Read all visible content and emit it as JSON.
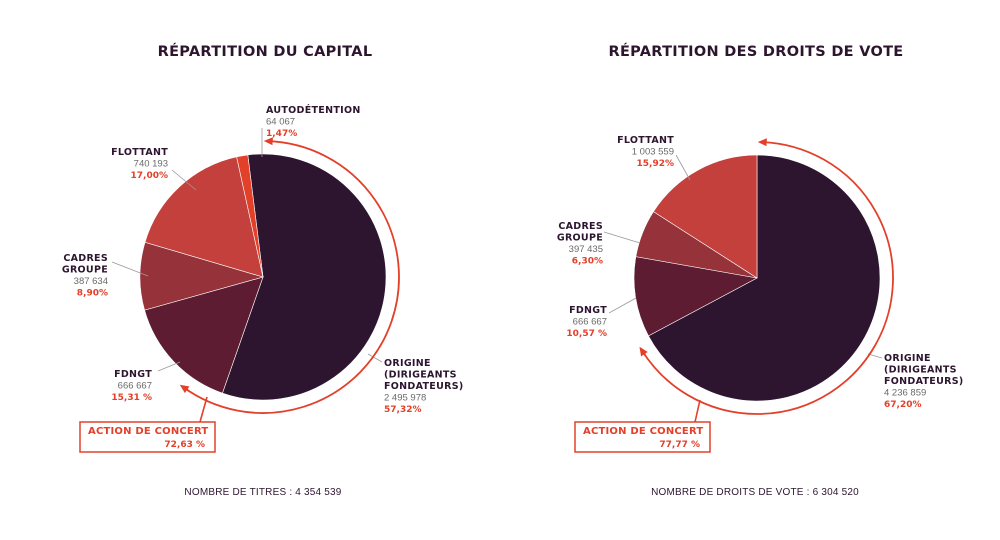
{
  "colors": {
    "origine": "#2d1530",
    "fdngt": "#5e1c32",
    "cadres": "#96333a",
    "flottant": "#c4403c",
    "autodetention": "#e3402a",
    "accent": "#e3402a",
    "text": "#2d1530"
  },
  "chart_data": [
    {
      "type": "pie",
      "title": "RÉPARTITION DU CAPITAL",
      "slices": [
        {
          "key": "origine",
          "name": [
            "ORIGINE",
            "(DIRIGEANTS",
            "FONDATEURS)"
          ],
          "count": "2 495 978",
          "pct_label": "57,32%",
          "value": 57.32
        },
        {
          "key": "fdngt",
          "name": [
            "FDNGT"
          ],
          "count": "666 667",
          "pct_label": "15,31 %",
          "value": 15.31
        },
        {
          "key": "cadres",
          "name": [
            "CADRES",
            "GROUPE"
          ],
          "count": "387 634",
          "pct_label": "8,90%",
          "value": 8.9
        },
        {
          "key": "flottant",
          "name": [
            "FLOTTANT"
          ],
          "count": "740 193",
          "pct_label": "17,00%",
          "value": 17.0
        },
        {
          "key": "autodetention",
          "name": [
            "AUTODÉTENTION"
          ],
          "count": "64 067",
          "pct_label": "1,47%",
          "value": 1.47
        }
      ],
      "concert": {
        "label": "ACTION DE CONCERT",
        "pct_label": "72,63 %",
        "value": 72.63
      },
      "footer": "NOMBRE DE TITRES : 4 354 539"
    },
    {
      "type": "pie",
      "title": "RÉPARTITION DES DROITS DE VOTE",
      "slices": [
        {
          "key": "origine",
          "name": [
            "ORIGINE",
            "(DIRIGEANTS",
            "FONDATEURS)"
          ],
          "count": "4 236 859",
          "pct_label": "67,20%",
          "value": 67.2
        },
        {
          "key": "fdngt",
          "name": [
            "FDNGT"
          ],
          "count": "666 667",
          "pct_label": "10,57 %",
          "value": 10.57
        },
        {
          "key": "cadres",
          "name": [
            "CADRES",
            "GROUPE"
          ],
          "count": "397 435",
          "pct_label": "6,30%",
          "value": 6.3
        },
        {
          "key": "flottant",
          "name": [
            "FLOTTANT"
          ],
          "count": "1 003 559",
          "pct_label": "15,92%",
          "value": 15.92
        }
      ],
      "concert": {
        "label": "ACTION DE CONCERT",
        "pct_label": "77,77 %",
        "value": 77.77
      },
      "footer": "NOMBRE DE DROITS DE VOTE : 6 304 520"
    }
  ]
}
